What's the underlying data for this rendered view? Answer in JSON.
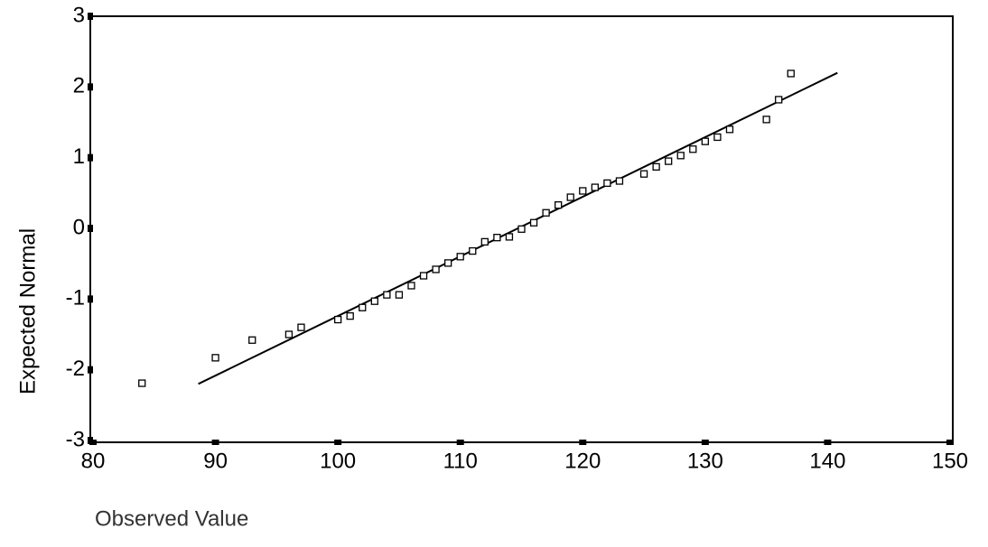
{
  "chart_data": {
    "type": "scatter",
    "x_label": "Observed Value",
    "y_label": "Expected Normal",
    "x": [
      84,
      90,
      93,
      96,
      97,
      100,
      101,
      102,
      103,
      104,
      105,
      106,
      107,
      108,
      109,
      110,
      111,
      112,
      113,
      114,
      115,
      116,
      117,
      118,
      119,
      120,
      121,
      122,
      123,
      125,
      126,
      127,
      128,
      129,
      130,
      131,
      132,
      135,
      136,
      137
    ],
    "values": [
      -2.19,
      -1.83,
      -1.58,
      -1.5,
      -1.4,
      -1.29,
      -1.24,
      -1.12,
      -1.03,
      -0.94,
      -0.94,
      -0.81,
      -0.67,
      -0.58,
      -0.49,
      -0.4,
      -0.32,
      -0.19,
      -0.13,
      -0.12,
      -0.01,
      0.08,
      0.22,
      0.33,
      0.44,
      0.53,
      0.58,
      0.64,
      0.67,
      0.77,
      0.87,
      0.95,
      1.03,
      1.12,
      1.23,
      1.29,
      1.4,
      1.54,
      1.82,
      2.19
    ],
    "color": "#000000",
    "fit_line": {
      "x": [
        88.6,
        140.8
      ],
      "y": [
        -2.2,
        2.2
      ]
    },
    "xlim": [
      80,
      150
    ],
    "xticks": [
      80,
      90,
      100,
      110,
      120,
      130,
      140,
      150
    ],
    "ylim": [
      -3,
      3
    ],
    "yticks": [
      -3,
      -2,
      -1,
      0,
      1,
      2,
      3
    ]
  }
}
